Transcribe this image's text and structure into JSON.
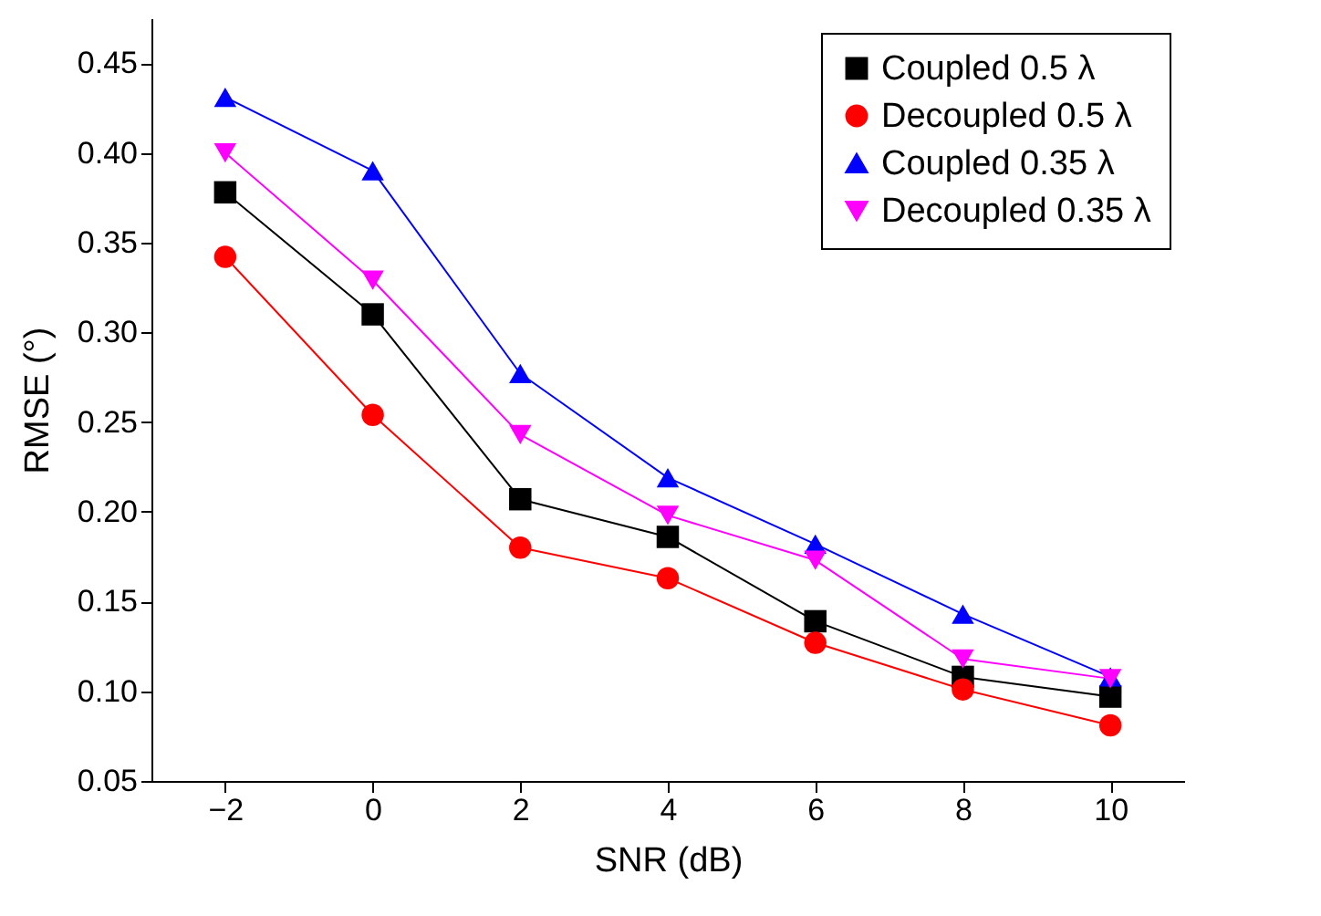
{
  "chart_data": {
    "type": "line",
    "xlabel": "SNR (dB)",
    "ylabel": "RMSE (°)",
    "x": [
      -2,
      0,
      2,
      4,
      6,
      8,
      10
    ],
    "xlim": [
      -3,
      11
    ],
    "xticks": [
      -2,
      0,
      2,
      4,
      6,
      8,
      10
    ],
    "ylim": [
      0.05,
      0.475
    ],
    "yticks": [
      0.05,
      {
        "value": 0.1,
        "label": "0.10"
      },
      0.15,
      {
        "value": 0.2,
        "label": "0.20"
      },
      0.25,
      {
        "value": 0.3,
        "label": "0.30"
      },
      0.35,
      {
        "value": 0.4,
        "label": "0.40"
      },
      0.45
    ],
    "grid": false,
    "legend": "top right",
    "series": [
      {
        "name": "Coupled 0.5 λ",
        "color": "#000000",
        "marker": "square",
        "values": [
          0.378,
          0.31,
          0.207,
          0.186,
          0.139,
          0.108,
          0.097
        ]
      },
      {
        "name": "Decoupled 0.5 λ",
        "color": "#ff0000",
        "marker": "circle",
        "values": [
          0.342,
          0.254,
          0.18,
          0.163,
          0.127,
          0.101,
          0.081
        ]
      },
      {
        "name": "Coupled 0.35 λ",
        "color": "#0000ff",
        "marker": "triangle",
        "values": [
          0.431,
          0.39,
          0.277,
          0.219,
          0.182,
          0.143,
          0.108
        ]
      },
      {
        "name": "Decoupled 0.35 λ",
        "color": "#ff00ff",
        "marker": "triangle-down",
        "values": [
          0.4,
          0.329,
          0.243,
          0.198,
          0.173,
          0.118,
          0.107
        ]
      }
    ]
  }
}
